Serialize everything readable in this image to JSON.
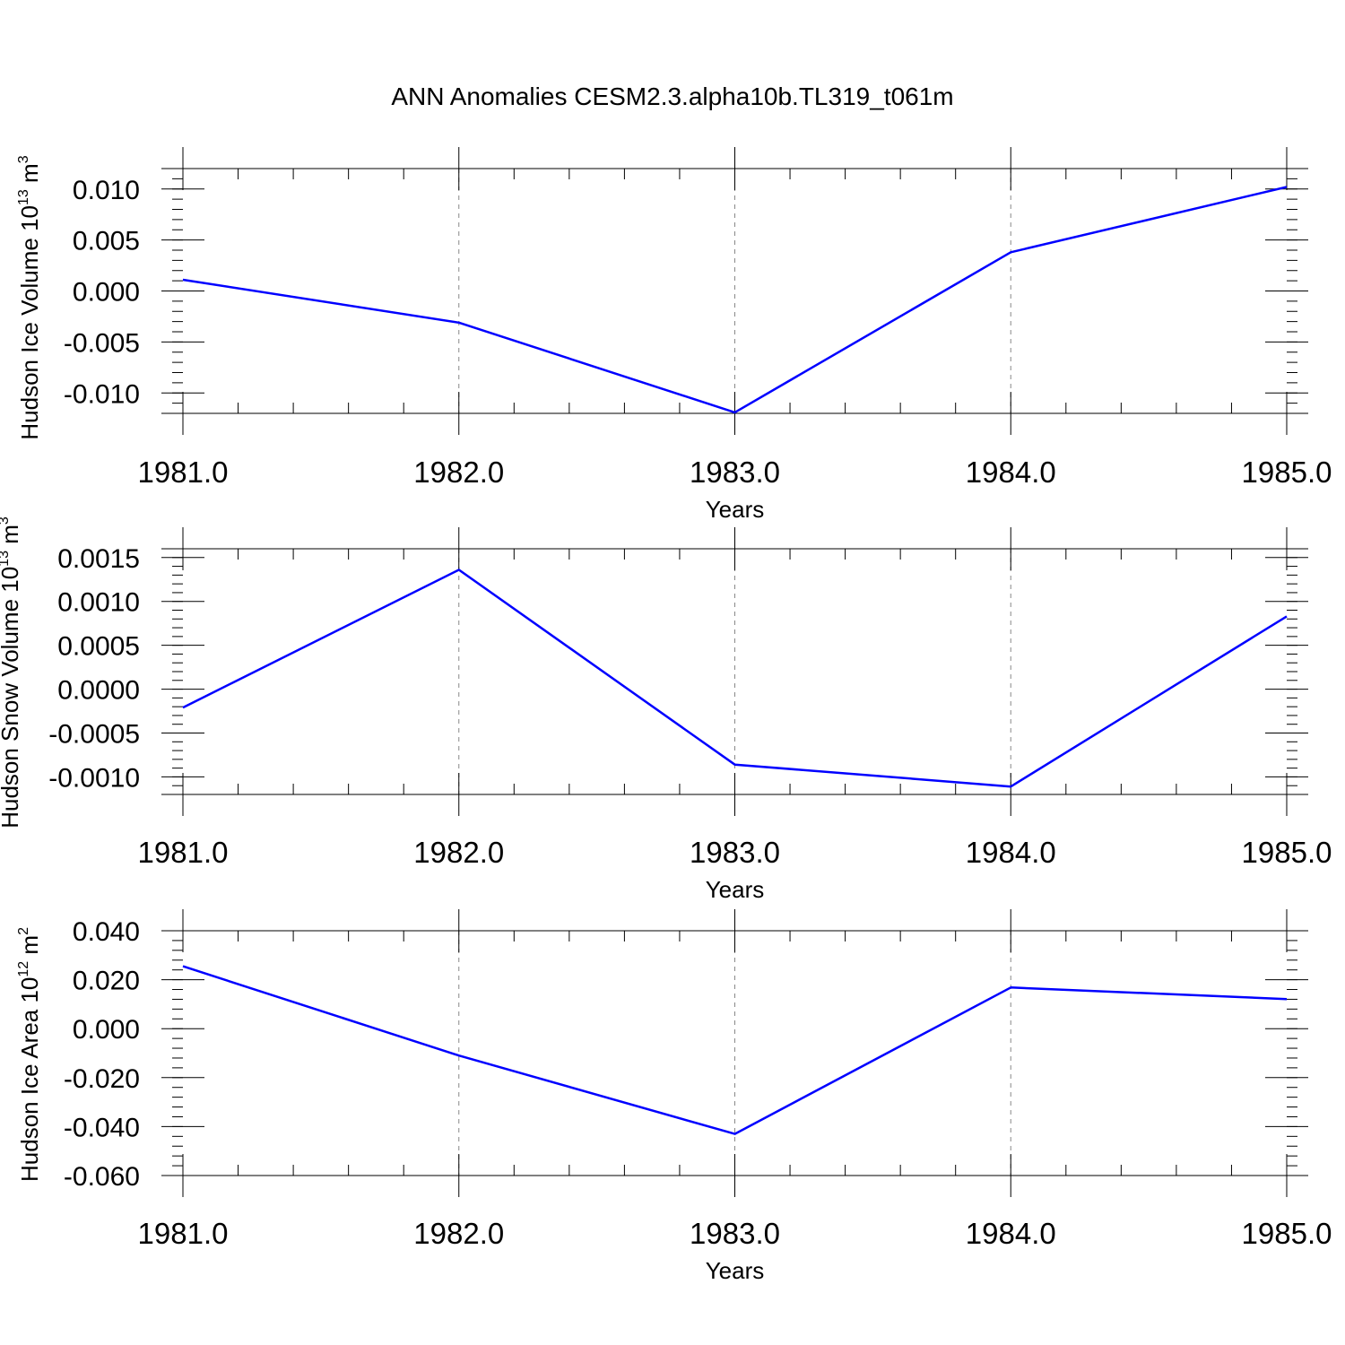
{
  "figure": {
    "title": "ANN Anomalies CESM2.3.alpha10b.TL319_t061m",
    "line_color": "#0000ff",
    "grid_color": "#888888"
  },
  "chart_data": [
    {
      "type": "line",
      "title": "",
      "xlabel": "Years",
      "ylabel": "Hudson Ice Volume",
      "ylabel_unit_base": "10",
      "ylabel_unit_exp": "13",
      "ylabel_unit": "m",
      "ylabel_unit_unit_exp": "3",
      "x": [
        1981,
        1982,
        1983,
        1984,
        1985
      ],
      "xticks": [
        "1981.0",
        "1982.0",
        "1983.0",
        "1984.0",
        "1985.0"
      ],
      "series": [
        {
          "values": [
            0.0011,
            -0.0031,
            -0.0119,
            0.0038,
            0.0102
          ]
        }
      ],
      "xlim": [
        1981,
        1985
      ],
      "ylim": [
        -0.012,
        0.012
      ],
      "yticks": [
        0.01,
        0.005,
        0.0,
        -0.005,
        -0.01
      ],
      "ytick_labels": [
        "0.010",
        "0.005",
        "0.000",
        "-0.005",
        "-0.010"
      ],
      "yminor_step": 0.001,
      "grid": "vertical dashed at major x ticks"
    },
    {
      "type": "line",
      "title": "",
      "xlabel": "Years",
      "ylabel": "Hudson Snow Volume",
      "ylabel_unit_base": "10",
      "ylabel_unit_exp": "13",
      "ylabel_unit": "m",
      "ylabel_unit_unit_exp": "3",
      "x": [
        1981,
        1982,
        1983,
        1984,
        1985
      ],
      "xticks": [
        "1981.0",
        "1982.0",
        "1983.0",
        "1984.0",
        "1985.0"
      ],
      "series": [
        {
          "values": [
            -0.00021,
            0.00136,
            -0.00086,
            -0.00111,
            0.00083
          ]
        }
      ],
      "xlim": [
        1981,
        1985
      ],
      "ylim": [
        -0.0012,
        0.0016
      ],
      "yticks": [
        0.0015,
        0.001,
        0.0005,
        0.0,
        -0.0005,
        -0.001
      ],
      "ytick_labels": [
        "0.0015",
        "0.0010",
        "0.0005",
        "0.0000",
        "-0.0005",
        "-0.0010"
      ],
      "yminor_step": 0.0001,
      "grid": "vertical dashed at major x ticks"
    },
    {
      "type": "line",
      "title": "",
      "xlabel": "Years",
      "ylabel": "Hudson Ice Area",
      "ylabel_unit_base": "10",
      "ylabel_unit_exp": "12",
      "ylabel_unit": "m",
      "ylabel_unit_unit_exp": "2",
      "x": [
        1981,
        1982,
        1983,
        1984,
        1985
      ],
      "xticks": [
        "1981.0",
        "1982.0",
        "1983.0",
        "1984.0",
        "1985.0"
      ],
      "series": [
        {
          "values": [
            0.0255,
            -0.011,
            -0.043,
            0.0168,
            0.0121
          ]
        }
      ],
      "xlim": [
        1981,
        1985
      ],
      "ylim": [
        -0.06,
        0.04
      ],
      "yticks": [
        0.04,
        0.02,
        0.0,
        -0.02,
        -0.04,
        -0.06
      ],
      "ytick_labels": [
        "0.040",
        "0.020",
        "0.000",
        "-0.020",
        "-0.040",
        "-0.060"
      ],
      "yminor_step": 0.004,
      "grid": "vertical dashed at major x ticks"
    }
  ]
}
